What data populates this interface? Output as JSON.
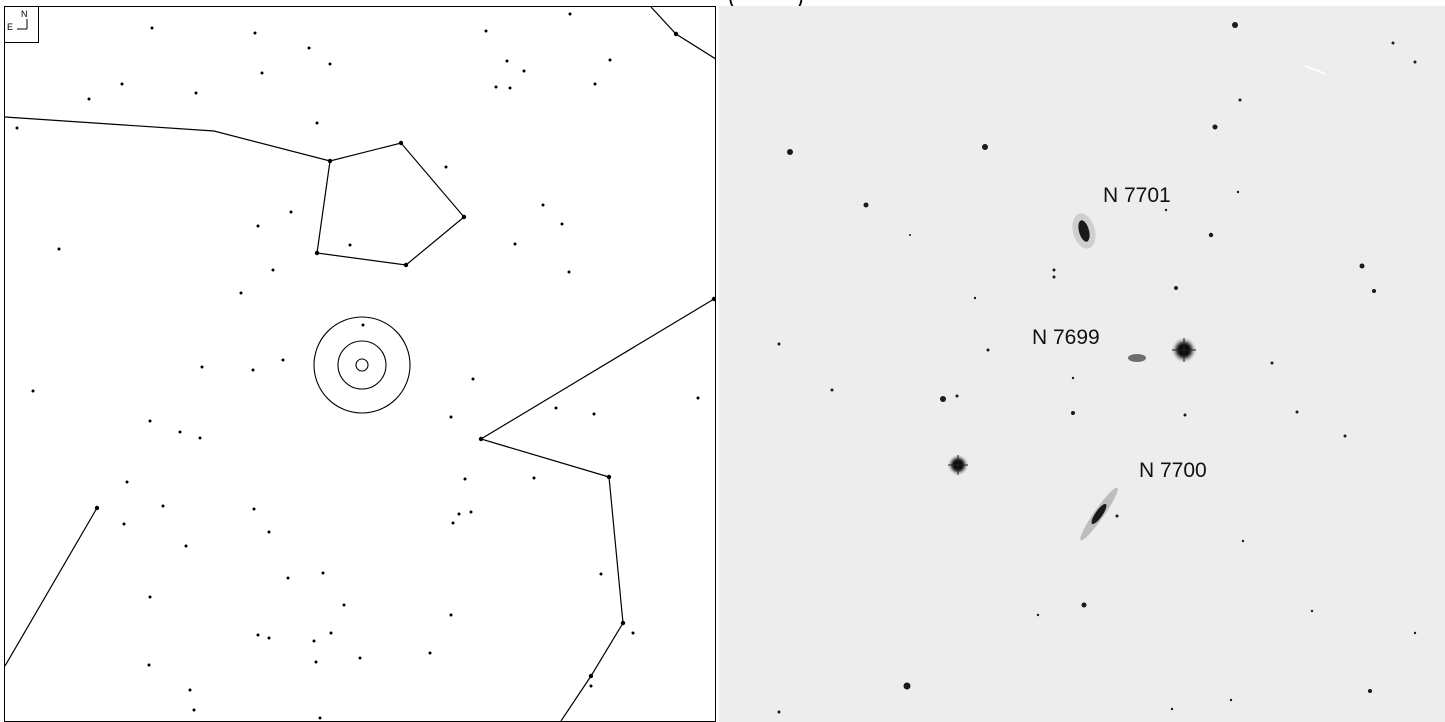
{
  "header": {
    "title_fragment": "(          )"
  },
  "finder_chart": {
    "compass": {
      "north": "N",
      "east": "E"
    },
    "field_of_view_rings": 3
  },
  "photo": {
    "galaxy_labels": [
      "N 7701",
      "N 7699",
      "N 7700"
    ]
  }
}
